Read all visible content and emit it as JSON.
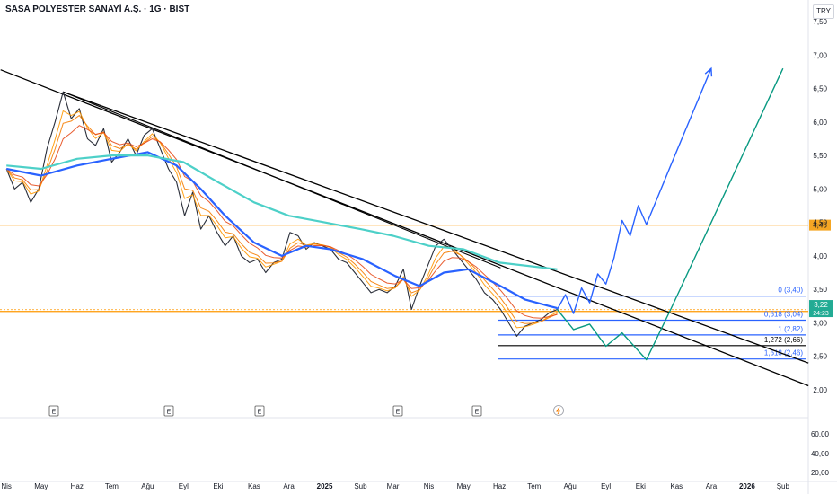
{
  "header": {
    "title": "SASA POLYESTER SANAYİ A.Ş. · 1G · BIST",
    "currency": "TRY"
  },
  "colors": {
    "price": "#2a2e39",
    "ema_fast1": "#ff9800",
    "ema_fast2": "#f57c00",
    "ema_fast3": "#e64a19",
    "ma_blue": "#2962ff",
    "ma_teal": "#4dd0c8",
    "projection_blue": "#2962ff",
    "projection_teal": "#089981",
    "fib_blue": "#2962ff",
    "orange_level": "#ff9800",
    "trendline": "#000000",
    "badge_green": "#22ab94",
    "badge_orange": "#f5a623"
  },
  "chart_data": {
    "type": "line",
    "title": "SASA POLYESTER SANAYİ A.Ş. · 1G · BIST",
    "x_ticks": [
      "Nis",
      "May",
      "Haz",
      "Tem",
      "Ağu",
      "Eyl",
      "Eki",
      "Kas",
      "Ara",
      "2025",
      "Şub",
      "Mar",
      "Nis",
      "May",
      "Haz",
      "Tem",
      "Ağu",
      "Eyl",
      "Eki",
      "Kas",
      "Ara",
      "2026",
      "Şub"
    ],
    "y_ticks": [
      "7,50",
      "7,00",
      "6,50",
      "6,00",
      "5,50",
      "5,00",
      "4,50",
      "4,00",
      "3,50",
      "3,00",
      "2,50",
      "2,00"
    ],
    "ylim": [
      1.6,
      7.75
    ],
    "volume_ticks": [
      "60,00",
      "40,00",
      "20,00"
    ],
    "series": [
      {
        "name": "Price",
        "values": [
          [
            "2024-04-01",
            5.3
          ],
          [
            "2024-04-08",
            5.0
          ],
          [
            "2024-04-15",
            5.1
          ],
          [
            "2024-04-22",
            4.8
          ],
          [
            "2024-04-29",
            5.0
          ],
          [
            "2024-05-06",
            5.6
          ],
          [
            "2024-05-13",
            6.0
          ],
          [
            "2024-05-20",
            6.45
          ],
          [
            "2024-05-27",
            6.05
          ],
          [
            "2024-06-03",
            6.2
          ],
          [
            "2024-06-10",
            5.75
          ],
          [
            "2024-06-17",
            5.65
          ],
          [
            "2024-06-24",
            5.9
          ],
          [
            "2024-07-01",
            5.4
          ],
          [
            "2024-07-08",
            5.55
          ],
          [
            "2024-07-15",
            5.75
          ],
          [
            "2024-07-22",
            5.5
          ],
          [
            "2024-07-29",
            5.8
          ],
          [
            "2024-08-05",
            5.9
          ],
          [
            "2024-08-12",
            5.6
          ],
          [
            "2024-08-19",
            5.3
          ],
          [
            "2024-08-26",
            5.1
          ],
          [
            "2024-09-02",
            4.6
          ],
          [
            "2024-09-09",
            4.95
          ],
          [
            "2024-09-16",
            4.4
          ],
          [
            "2024-09-23",
            4.6
          ],
          [
            "2024-09-30",
            4.35
          ],
          [
            "2024-10-07",
            4.15
          ],
          [
            "2024-10-14",
            4.3
          ],
          [
            "2024-10-21",
            4.0
          ],
          [
            "2024-10-28",
            3.9
          ],
          [
            "2024-11-04",
            3.95
          ],
          [
            "2024-11-11",
            3.75
          ],
          [
            "2024-11-18",
            3.9
          ],
          [
            "2024-11-25",
            3.95
          ],
          [
            "2024-12-02",
            4.35
          ],
          [
            "2024-12-09",
            4.3
          ],
          [
            "2024-12-16",
            4.1
          ],
          [
            "2024-12-23",
            4.2
          ],
          [
            "2024-12-30",
            4.15
          ],
          [
            "2025-01-06",
            4.1
          ],
          [
            "2025-01-13",
            3.95
          ],
          [
            "2025-01-20",
            3.9
          ],
          [
            "2025-01-27",
            3.75
          ],
          [
            "2025-02-03",
            3.6
          ],
          [
            "2025-02-10",
            3.45
          ],
          [
            "2025-02-17",
            3.5
          ],
          [
            "2025-02-24",
            3.45
          ],
          [
            "2025-03-03",
            3.55
          ],
          [
            "2025-03-10",
            3.8
          ],
          [
            "2025-03-17",
            3.2
          ],
          [
            "2025-03-24",
            3.55
          ],
          [
            "2025-03-31",
            3.85
          ],
          [
            "2025-04-07",
            4.15
          ],
          [
            "2025-04-14",
            4.25
          ],
          [
            "2025-04-21",
            4.1
          ],
          [
            "2025-04-28",
            3.95
          ],
          [
            "2025-05-05",
            3.8
          ],
          [
            "2025-05-12",
            3.65
          ],
          [
            "2025-05-19",
            3.45
          ],
          [
            "2025-05-26",
            3.35
          ],
          [
            "2025-06-02",
            3.2
          ],
          [
            "2025-06-09",
            3.0
          ],
          [
            "2025-06-16",
            2.8
          ],
          [
            "2025-06-23",
            2.95
          ],
          [
            "2025-06-30",
            3.0
          ],
          [
            "2025-07-07",
            3.05
          ],
          [
            "2025-07-14",
            3.15
          ],
          [
            "2025-07-21",
            3.2
          ]
        ]
      },
      {
        "name": "MA blue",
        "values": [
          [
            "2024-04-01",
            5.3
          ],
          [
            "2024-05-01",
            5.2
          ],
          [
            "2024-06-01",
            5.35
          ],
          [
            "2024-07-01",
            5.45
          ],
          [
            "2024-08-01",
            5.55
          ],
          [
            "2024-08-26",
            5.35
          ],
          [
            "2024-09-16",
            5.0
          ],
          [
            "2024-10-07",
            4.6
          ],
          [
            "2024-11-01",
            4.2
          ],
          [
            "2024-11-25",
            4.0
          ],
          [
            "2024-12-16",
            4.15
          ],
          [
            "2025-01-06",
            4.1
          ],
          [
            "2025-02-03",
            3.95
          ],
          [
            "2025-03-03",
            3.7
          ],
          [
            "2025-03-24",
            3.55
          ],
          [
            "2025-04-14",
            3.75
          ],
          [
            "2025-05-05",
            3.8
          ],
          [
            "2025-06-02",
            3.55
          ],
          [
            "2025-06-23",
            3.35
          ],
          [
            "2025-07-14",
            3.25
          ],
          [
            "2025-07-21",
            3.22
          ]
        ]
      },
      {
        "name": "MA teal",
        "values": [
          [
            "2024-04-01",
            5.35
          ],
          [
            "2024-05-01",
            5.3
          ],
          [
            "2024-06-01",
            5.45
          ],
          [
            "2024-07-01",
            5.5
          ],
          [
            "2024-08-01",
            5.5
          ],
          [
            "2024-09-01",
            5.4
          ],
          [
            "2024-10-01",
            5.1
          ],
          [
            "2024-11-01",
            4.8
          ],
          [
            "2024-12-01",
            4.6
          ],
          [
            "2025-01-01",
            4.5
          ],
          [
            "2025-02-01",
            4.4
          ],
          [
            "2025-03-01",
            4.3
          ],
          [
            "2025-04-01",
            4.15
          ],
          [
            "2025-05-01",
            4.1
          ],
          [
            "2025-06-01",
            3.9
          ],
          [
            "2025-07-21",
            3.8
          ]
        ]
      },
      {
        "name": "Projection blue",
        "values": [
          [
            "2025-07-21",
            3.2
          ],
          [
            "2025-07-28",
            3.42
          ],
          [
            "2025-08-04",
            3.14
          ],
          [
            "2025-08-11",
            3.52
          ],
          [
            "2025-08-18",
            3.3
          ],
          [
            "2025-08-25",
            3.73
          ],
          [
            "2025-09-01",
            3.58
          ],
          [
            "2025-09-08",
            3.97
          ],
          [
            "2025-09-15",
            4.53
          ],
          [
            "2025-09-22",
            4.3
          ],
          [
            "2025-09-29",
            4.75
          ],
          [
            "2025-10-06",
            4.47
          ],
          [
            "2025-10-27",
            5.35
          ],
          [
            "2025-12-01",
            6.8
          ]
        ]
      },
      {
        "name": "Projection teal",
        "values": [
          [
            "2025-07-21",
            3.2
          ],
          [
            "2025-08-04",
            2.9
          ],
          [
            "2025-08-18",
            2.98
          ],
          [
            "2025-09-01",
            2.65
          ],
          [
            "2025-09-15",
            2.85
          ],
          [
            "2025-10-06",
            2.45
          ],
          [
            "2025-10-27",
            3.2
          ],
          [
            "2026-02-01",
            6.8
          ]
        ]
      },
      {
        "name": "Trendline 1",
        "values": [
          [
            "2024-03-27",
            6.78
          ],
          [
            "2026-02-23",
            2.06
          ]
        ]
      },
      {
        "name": "Trendline 2",
        "values": [
          [
            "2024-05-20",
            6.45
          ],
          [
            "2026-02-23",
            2.4
          ]
        ]
      },
      {
        "name": "Trendline 3",
        "values": [
          [
            "2024-05-20",
            6.45
          ],
          [
            "2025-06-02",
            3.82
          ]
        ]
      }
    ],
    "fibonacci": [
      {
        "label": "0 (3,40)",
        "value": 3.4
      },
      {
        "label": "0,618 (3,04)",
        "value": 3.04
      },
      {
        "label": "1 (2,82)",
        "value": 2.82
      },
      {
        "label": "1,272 (2,66)",
        "value": 2.66
      },
      {
        "label": "1,618 (2,46)",
        "value": 2.46
      }
    ],
    "horizontal_levels": [
      {
        "label": "4,46",
        "value": 4.46
      },
      {
        "label": "3,17",
        "value": 3.17
      }
    ],
    "last_price": {
      "value": "3,22",
      "countdown": "24:23"
    },
    "event_markers": [
      "E",
      "E",
      "E",
      "E",
      "E"
    ],
    "grid": true
  }
}
